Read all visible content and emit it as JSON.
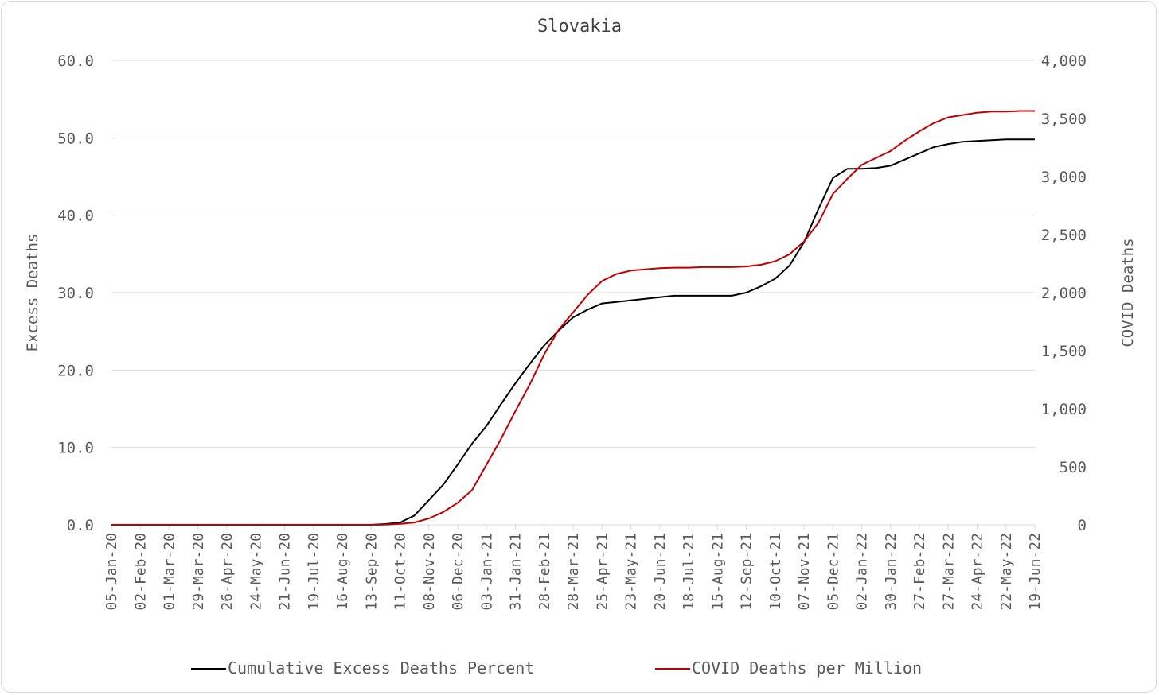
{
  "chart_data": {
    "type": "line",
    "title": "Slovakia",
    "ylabel": "Excess Deaths",
    "y2label": "COVID Deaths",
    "ylim": [
      0,
      60
    ],
    "y2lim": [
      0,
      4000
    ],
    "y_ticks": [
      "0.0",
      "10.0",
      "20.0",
      "30.0",
      "40.0",
      "50.0",
      "60.0"
    ],
    "y2_ticks": [
      "0",
      "500",
      "1,000",
      "1,500",
      "2,000",
      "2,500",
      "3,000",
      "3,500",
      "4,000"
    ],
    "x_ticks": [
      "05-Jan-20",
      "02-Feb-20",
      "01-Mar-20",
      "29-Mar-20",
      "26-Apr-20",
      "24-May-20",
      "21-Jun-20",
      "19-Jul-20",
      "16-Aug-20",
      "13-Sep-20",
      "11-Oct-20",
      "08-Nov-20",
      "06-Dec-20",
      "03-Jan-21",
      "31-Jan-21",
      "28-Feb-21",
      "28-Mar-21",
      "25-Apr-21",
      "23-May-21",
      "20-Jun-21",
      "18-Jul-21",
      "15-Aug-21",
      "12-Sep-21",
      "10-Oct-21",
      "07-Nov-21",
      "05-Dec-21",
      "02-Jan-22",
      "30-Jan-22",
      "27-Feb-22",
      "27-Mar-22",
      "24-Apr-22",
      "22-May-22",
      "19-Jun-22"
    ],
    "grid": true,
    "legend_position": "bottom",
    "series": [
      {
        "name": "Cumulative Excess Deaths Percent",
        "axis": "left",
        "color": "#000000",
        "x": [
          "05-Jan-20",
          "13-Sep-20",
          "27-Sep-20",
          "11-Oct-20",
          "25-Oct-20",
          "08-Nov-20",
          "22-Nov-20",
          "06-Dec-20",
          "20-Dec-20",
          "03-Jan-21",
          "17-Jan-21",
          "31-Jan-21",
          "14-Feb-21",
          "28-Feb-21",
          "14-Mar-21",
          "28-Mar-21",
          "11-Apr-21",
          "25-Apr-21",
          "09-May-21",
          "23-May-21",
          "06-Jun-21",
          "20-Jun-21",
          "04-Jul-21",
          "18-Jul-21",
          "01-Aug-21",
          "15-Aug-21",
          "29-Aug-21",
          "12-Sep-21",
          "26-Sep-21",
          "10-Oct-21",
          "24-Oct-21",
          "07-Nov-21",
          "21-Nov-21",
          "05-Dec-21",
          "19-Dec-21",
          "02-Jan-22",
          "16-Jan-22",
          "30-Jan-22",
          "13-Feb-22",
          "27-Feb-22",
          "13-Mar-22",
          "27-Mar-22",
          "10-Apr-22",
          "24-Apr-22",
          "08-May-22",
          "22-May-22",
          "05-Jun-22",
          "19-Jun-22"
        ],
        "values": [
          0.0,
          0.0,
          0.1,
          0.3,
          1.2,
          3.2,
          5.2,
          7.8,
          10.5,
          12.8,
          15.6,
          18.3,
          20.8,
          23.2,
          25.1,
          26.8,
          27.8,
          28.6,
          28.8,
          29.0,
          29.2,
          29.4,
          29.6,
          29.6,
          29.6,
          29.6,
          29.6,
          30.0,
          30.8,
          31.8,
          33.5,
          36.5,
          40.8,
          44.8,
          46.0,
          46.0,
          46.1,
          46.4,
          47.2,
          48.0,
          48.8,
          49.2,
          49.5,
          49.6,
          49.7,
          49.8,
          49.8,
          49.8
        ]
      },
      {
        "name": "COVID Deaths per Million",
        "axis": "right",
        "color": "#c00000",
        "x": [
          "05-Jan-20",
          "13-Sep-20",
          "27-Sep-20",
          "11-Oct-20",
          "25-Oct-20",
          "08-Nov-20",
          "22-Nov-20",
          "06-Dec-20",
          "20-Dec-20",
          "03-Jan-21",
          "17-Jan-21",
          "31-Jan-21",
          "14-Feb-21",
          "28-Feb-21",
          "14-Mar-21",
          "28-Mar-21",
          "11-Apr-21",
          "25-Apr-21",
          "09-May-21",
          "23-May-21",
          "06-Jun-21",
          "20-Jun-21",
          "04-Jul-21",
          "18-Jul-21",
          "01-Aug-21",
          "15-Aug-21",
          "29-Aug-21",
          "12-Sep-21",
          "26-Sep-21",
          "10-Oct-21",
          "24-Oct-21",
          "07-Nov-21",
          "21-Nov-21",
          "05-Dec-21",
          "19-Dec-21",
          "02-Jan-22",
          "16-Jan-22",
          "30-Jan-22",
          "13-Feb-22",
          "27-Feb-22",
          "13-Mar-22",
          "27-Mar-22",
          "10-Apr-22",
          "24-Apr-22",
          "08-May-22",
          "22-May-22",
          "05-Jun-22",
          "19-Jun-22"
        ],
        "values": [
          0,
          0,
          2,
          8,
          20,
          55,
          110,
          190,
          300,
          520,
          740,
          980,
          1210,
          1470,
          1680,
          1830,
          1980,
          2100,
          2160,
          2190,
          2200,
          2210,
          2215,
          2215,
          2220,
          2220,
          2220,
          2225,
          2240,
          2270,
          2330,
          2440,
          2600,
          2850,
          2980,
          3100,
          3160,
          3220,
          3310,
          3390,
          3460,
          3510,
          3530,
          3550,
          3560,
          3560,
          3565,
          3565
        ]
      }
    ]
  }
}
